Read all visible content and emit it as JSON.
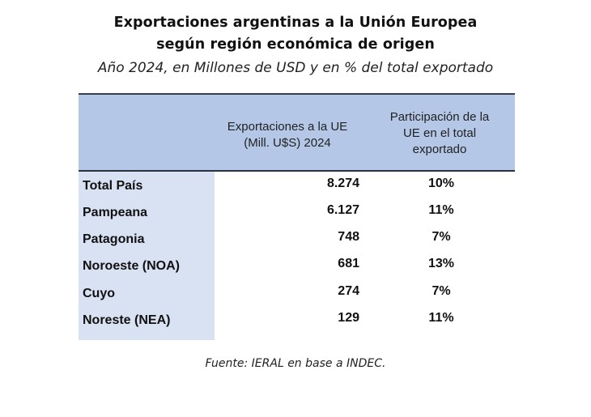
{
  "chart_data": {
    "type": "table",
    "title": "Exportaciones argentinas a la Unión Europea",
    "title_line2": "según región económica de origen",
    "subtitle": "Año 2024, en Millones de USD y en % del total exportado",
    "columns": [
      "",
      "Exportaciones a la UE (Mill. U$S) 2024",
      "Participación de la UE en el total exportado"
    ],
    "header_lines": {
      "col1": [
        "Exportaciones a la UE",
        "(Mill. U$S) 2024"
      ],
      "col2": [
        "Participación de la",
        "UE en el total",
        "exportado"
      ]
    },
    "rows": [
      {
        "region": "Total País",
        "exports": "8.274",
        "share": "10%"
      },
      {
        "region": "Pampeana",
        "exports": "6.127",
        "share": "11%"
      },
      {
        "region": "Patagonia",
        "exports": "748",
        "share": "7%"
      },
      {
        "region": "Noroeste (NOA)",
        "exports": "681",
        "share": "13%"
      },
      {
        "region": "Cuyo",
        "exports": "274",
        "share": "7%"
      },
      {
        "region": "Noreste (NEA)",
        "exports": "129",
        "share": "11%"
      }
    ],
    "source": "Fuente: IERAL en base a INDEC."
  },
  "colors": {
    "header_bg": "#b4c7e7",
    "first_col_bg": "#d9e2f2",
    "border": "#2c3140"
  }
}
